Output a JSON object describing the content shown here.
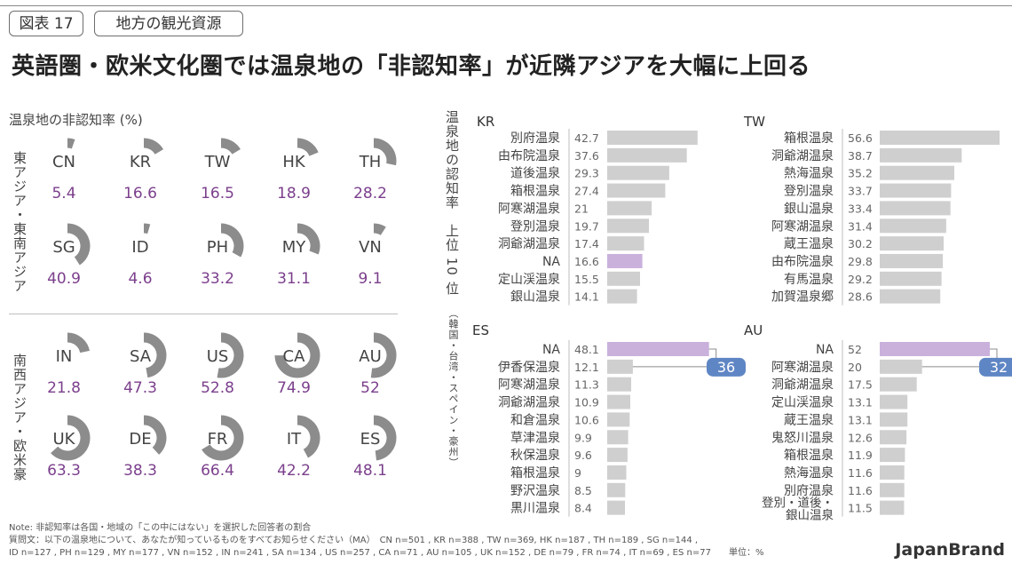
{
  "header": {
    "figure_tag": "図表 17",
    "category_tag": "地方の観光資源",
    "title": "英語圏・欧米文化圏では温泉地の「非認知率」が近隣アジアを大幅に上回る"
  },
  "left_panel": {
    "subtitle": "温泉地の非認知率 (%)",
    "group1_label": "東アジア・東南アジア",
    "group2_label": "南西アジア・欧米豪"
  },
  "right_panel": {
    "axis_label": "温泉地の認知率　上位 10 位",
    "axis_sublabel": "（韓国・台湾・スペイン・豪州）"
  },
  "chart_data": [
    {
      "type": "gauge",
      "title": "温泉地の非認知率 (%)",
      "unit": "%",
      "items": [
        {
          "code": "CN",
          "value": 5.4
        },
        {
          "code": "KR",
          "value": 16.6
        },
        {
          "code": "TW",
          "value": 16.5
        },
        {
          "code": "HK",
          "value": 18.9
        },
        {
          "code": "TH",
          "value": 28.2
        },
        {
          "code": "SG",
          "value": 40.9
        },
        {
          "code": "ID",
          "value": 4.6
        },
        {
          "code": "PH",
          "value": 33.2
        },
        {
          "code": "MY",
          "value": 31.1
        },
        {
          "code": "VN",
          "value": 9.1
        },
        {
          "code": "IN",
          "value": 21.8
        },
        {
          "code": "SA",
          "value": 47.3
        },
        {
          "code": "US",
          "value": 52.8
        },
        {
          "code": "CA",
          "value": 74.9
        },
        {
          "code": "AU",
          "value": 52
        },
        {
          "code": "UK",
          "value": 63.3
        },
        {
          "code": "DE",
          "value": 38.3
        },
        {
          "code": "FR",
          "value": 66.4
        },
        {
          "code": "IT",
          "value": 42.2
        },
        {
          "code": "ES",
          "value": 48.1
        }
      ]
    },
    {
      "type": "bar",
      "title": "KR",
      "categories": [
        "別府温泉",
        "由布院温泉",
        "道後温泉",
        "箱根温泉",
        "阿寒湖温泉",
        "登別温泉",
        "洞爺湖温泉",
        "NA",
        "定山渓温泉",
        "銀山温泉"
      ],
      "values": [
        42.7,
        37.6,
        29.3,
        27.4,
        21,
        19.7,
        17.4,
        16.6,
        15.5,
        14.1
      ],
      "highlight": "NA"
    },
    {
      "type": "bar",
      "title": "TW",
      "categories": [
        "箱根温泉",
        "洞爺湖温泉",
        "熱海温泉",
        "登別温泉",
        "銀山温泉",
        "阿寒湖温泉",
        "蔵王温泉",
        "由布院温泉",
        "有馬温泉",
        "加賀温泉郷"
      ],
      "values": [
        56.6,
        38.7,
        35.2,
        33.7,
        33.4,
        31.4,
        30.2,
        29.8,
        29.2,
        28.6
      ]
    },
    {
      "type": "bar",
      "title": "ES",
      "categories": [
        "NA",
        "伊香保温泉",
        "阿寒湖温泉",
        "洞爺湖温泉",
        "和倉温泉",
        "草津温泉",
        "秋保温泉",
        "箱根温泉",
        "野沢温泉",
        "黒川温泉"
      ],
      "values": [
        48.1,
        12.1,
        11.3,
        10.9,
        10.6,
        9.9,
        9.6,
        9,
        8.5,
        8.4
      ],
      "highlight": "NA",
      "callout": 36
    },
    {
      "type": "bar",
      "title": "AU",
      "categories": [
        "NA",
        "阿寒湖温泉",
        "洞爺湖温泉",
        "定山渓温泉",
        "蔵王温泉",
        "鬼怒川温泉",
        "箱根温泉",
        "熱海温泉",
        "別府温泉",
        "登別・道後・銀山温泉"
      ],
      "values": [
        52,
        20,
        17.5,
        13.1,
        13.1,
        12.6,
        11.9,
        11.6,
        11.6,
        11.5
      ],
      "highlight": "NA",
      "callout": 32
    }
  ],
  "colors": {
    "gauge": "#8c8c8c",
    "value_text": "#7b3f8c",
    "bar": "#cfcfcf",
    "bar_highlight": "#c9b1dc",
    "callout": "#5f86c4"
  },
  "notes": {
    "line1": "Note: 非認知率は各国・地域の「この中にはない」を選択した回答者の割合",
    "line2": "質問文：以下の温泉地について、あなたが知っているものをすべてお知らせください（MA）　CN n=501 , KR n=388 , TW n=369, HK n=187 , TH n=189 , SG n=144 ,",
    "line3": "ID n=127 , PH n=129 , MY n=177 , VN n=152 , IN n=241 , SA n=134 , US n=257 , CA n=71 , AU n=105 , UK n=152 , DE n=79 , FR n=74 , IT n=69 , ES n=77　　単位：%"
  },
  "brand": "JapanBrand"
}
